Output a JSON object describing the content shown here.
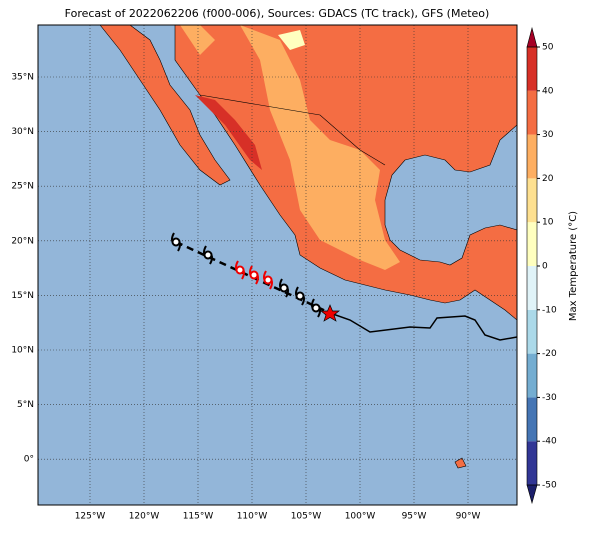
{
  "map": {
    "title": "Forecast of 2022062206 (f000-006), Sources: GDACS (TC track), GFS (Meteo)",
    "lat_labels": [
      "35°N",
      "30°N",
      "25°N",
      "20°N",
      "15°N",
      "10°N",
      "5°N",
      "0°"
    ],
    "lon_labels": [
      "125°W",
      "120°W",
      "115°W",
      "110°W",
      "105°W",
      "100°W",
      "95°W",
      "90°W"
    ]
  },
  "colorbar": {
    "label": "Max Temperature (°C)",
    "lim": [
      -50,
      50
    ],
    "ticks": [
      50,
      40,
      30,
      20,
      10,
      0,
      -10,
      -20,
      -30,
      -40,
      -50
    ],
    "colors": [
      "#313695",
      "#4575b4",
      "#74add1",
      "#abd9e9",
      "#e0f3f8",
      "#ffffbf",
      "#fee090",
      "#fdae61",
      "#f46d43",
      "#d73027"
    ],
    "extend_colors": [
      "#1b1f6b",
      "#a50026"
    ]
  }
}
